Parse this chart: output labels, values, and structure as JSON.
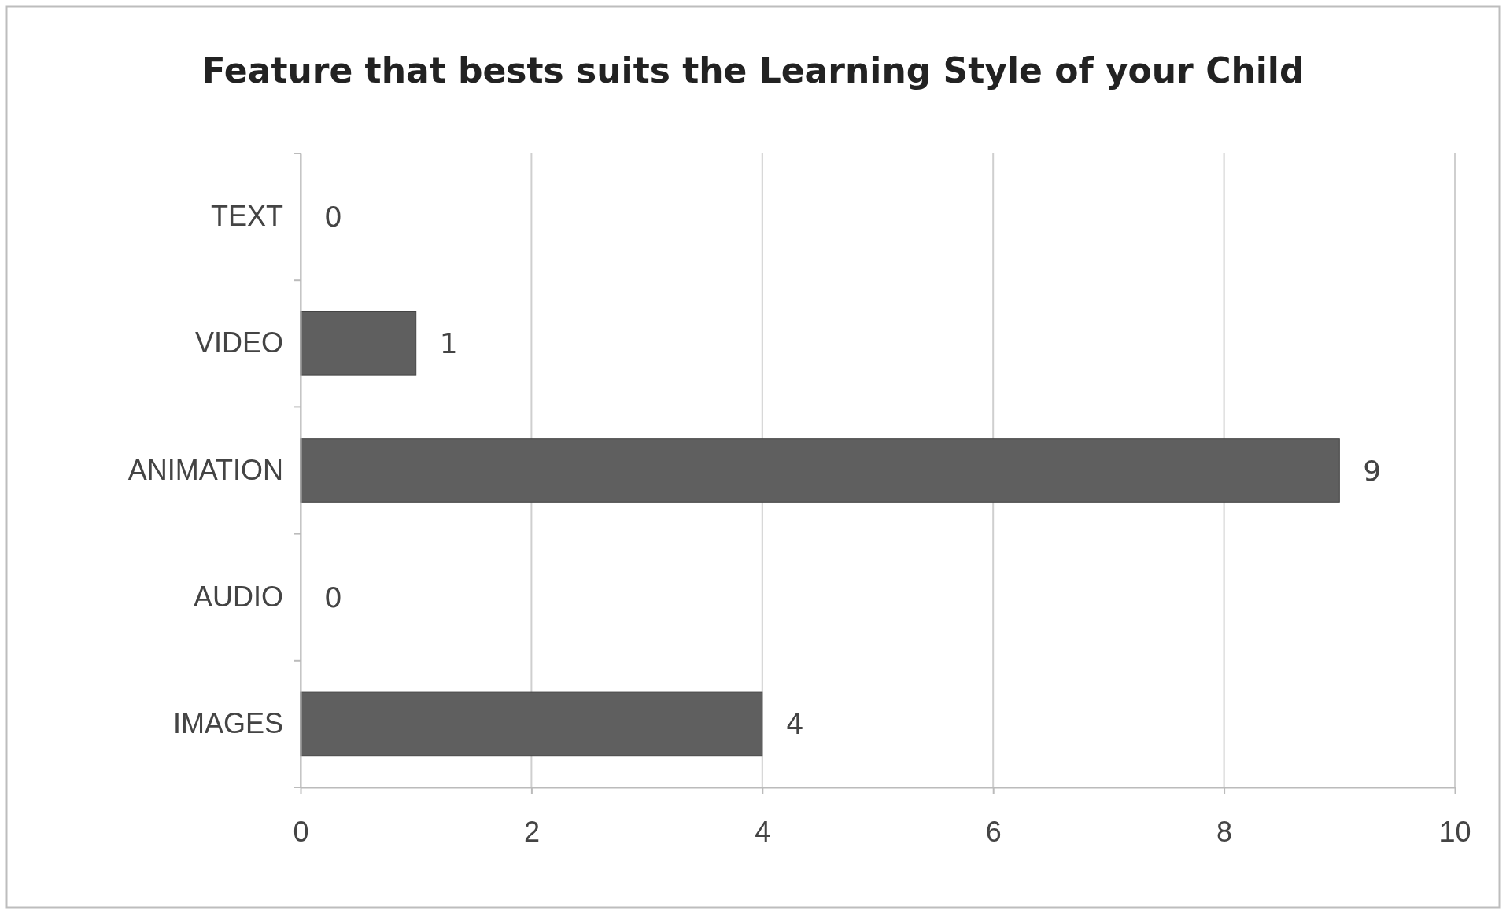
{
  "chart_data": {
    "type": "bar",
    "orientation": "horizontal",
    "title": "Feature that bests suits the Learning Style of your Child",
    "categories": [
      "TEXT",
      "VIDEO",
      "ANIMATION",
      "AUDIO",
      "IMAGES"
    ],
    "values": [
      0,
      1,
      9,
      0,
      4
    ],
    "color": "#5f5f5f",
    "xlim": [
      0,
      10
    ],
    "xticks": [
      0,
      2,
      4,
      6,
      8,
      10
    ],
    "grid": "x",
    "data_labels": true
  }
}
